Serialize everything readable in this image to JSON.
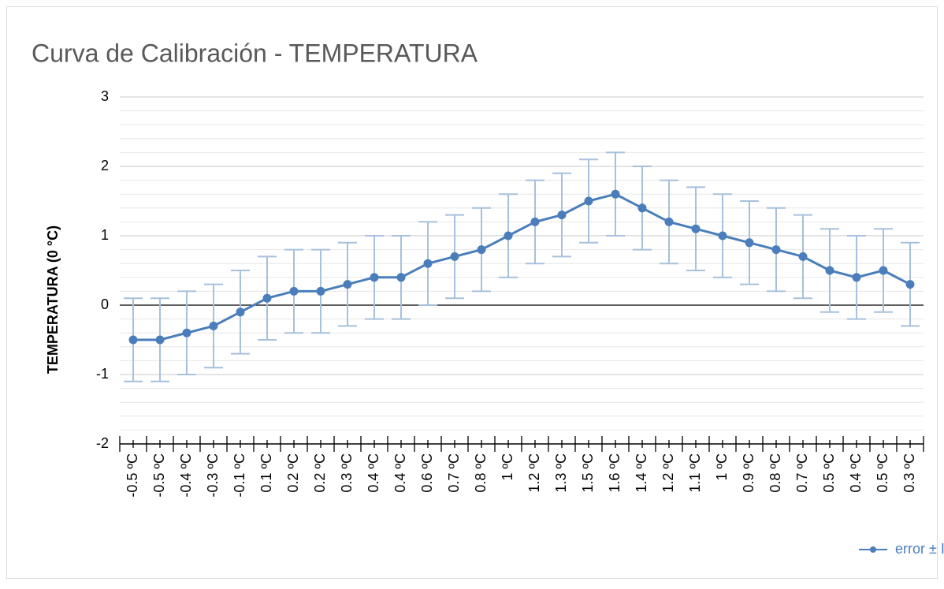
{
  "chart_data": {
    "type": "line",
    "title": "Curva de Calibración - TEMPERATURA",
    "ylabel": "TEMPERATURA (0 °C)",
    "categories": [
      "-0.5 ºC",
      "-0.5 ºC",
      "-0.4 ºC",
      "-0.3 ºC",
      "-0.1 ºC",
      "0.1 ºC",
      "0.2 ºC",
      "0.2 ºC",
      "0.3 ºC",
      "0.4 ºC",
      "0.4 ºC",
      "0.6 ºC",
      "0.7 ºC",
      "0.8 ºC",
      "1 ºC",
      "1.2 ºC",
      "1.3 ºC",
      "1.5 ºC",
      "1.6 ºC",
      "1.4 ºC",
      "1.2 ºC",
      "1.1 ºC",
      "1 ºC",
      "0.9 ºC",
      "0.8 ºC",
      "0.7 ºC",
      "0.5 ºC",
      "0.4 ºC",
      "0.5 ºC",
      "0.3 ºC"
    ],
    "series": [
      {
        "name": "error ± Incertidumbre",
        "color": "#4a7ebb",
        "error_color": "#a7c0dc",
        "values": [
          -0.5,
          -0.5,
          -0.4,
          -0.3,
          -0.1,
          0.1,
          0.2,
          0.2,
          0.3,
          0.4,
          0.4,
          0.6,
          0.7,
          0.8,
          1,
          1.2,
          1.3,
          1.5,
          1.6,
          1.4,
          1.2,
          1.1,
          1,
          0.9,
          0.8,
          0.7,
          0.5,
          0.4,
          0.5,
          0.3
        ],
        "errors": [
          0.6,
          0.6,
          0.6,
          0.6,
          0.6,
          0.6,
          0.6,
          0.6,
          0.6,
          0.6,
          0.6,
          0.6,
          0.6,
          0.6,
          0.6,
          0.6,
          0.6,
          0.6,
          0.6,
          0.6,
          0.6,
          0.6,
          0.6,
          0.6,
          0.6,
          0.6,
          0.6,
          0.6,
          0.6,
          0.6
        ]
      }
    ],
    "ylim": [
      -2,
      3
    ],
    "yticks": [
      -2,
      -1,
      0,
      1,
      2,
      3
    ],
    "grid": true,
    "legend": "bottom-right"
  }
}
